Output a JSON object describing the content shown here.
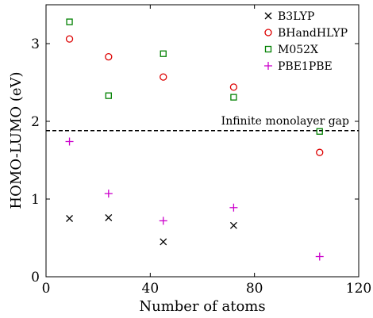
{
  "chart_data": {
    "type": "scatter",
    "title": "",
    "xlabel": "Number of atoms",
    "ylabel": "HOMO-LUMO (eV)",
    "xlim": [
      0,
      120
    ],
    "ylim": [
      0,
      3.5
    ],
    "xticks": [
      0,
      40,
      80,
      120
    ],
    "yticks": [
      0,
      1,
      2,
      3
    ],
    "grid": false,
    "legend_position": "top-right",
    "series": [
      {
        "name": "B3LYP",
        "marker": "x",
        "color": "#000000",
        "x": [
          9,
          24,
          45,
          72
        ],
        "y": [
          0.75,
          0.76,
          0.45,
          0.66
        ]
      },
      {
        "name": "BHandHLYP",
        "marker": "circle",
        "color": "#dd0000",
        "x": [
          9,
          24,
          45,
          72,
          105
        ],
        "y": [
          3.06,
          2.83,
          2.57,
          2.44,
          1.6
        ]
      },
      {
        "name": "M052X",
        "marker": "square",
        "color": "#008000",
        "x": [
          9,
          24,
          45,
          72,
          105
        ],
        "y": [
          3.28,
          2.33,
          2.87,
          2.31,
          1.87
        ]
      },
      {
        "name": "PBE1PBE",
        "marker": "plus",
        "color": "#cc00cc",
        "x": [
          9,
          24,
          45,
          72,
          105
        ],
        "y": [
          1.74,
          1.07,
          0.72,
          0.89,
          0.26
        ]
      }
    ],
    "reference_line": {
      "y": 1.88,
      "style": "dashed",
      "label": "Infinite monolayer gap"
    }
  }
}
